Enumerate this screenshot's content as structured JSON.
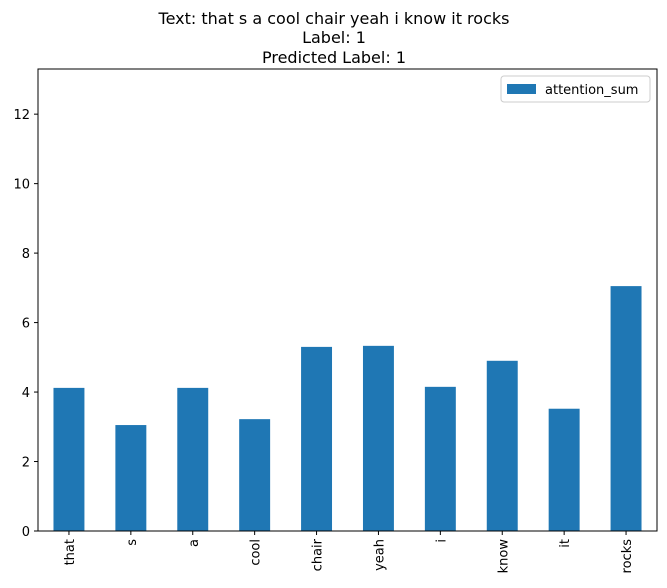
{
  "chart_data": {
    "type": "bar",
    "title_lines": [
      "Text: that s a cool chair yeah i know it rocks",
      "Label: 1",
      "Predicted Label: 1"
    ],
    "categories": [
      "that",
      "s",
      "a",
      "cool",
      "chair",
      "yeah",
      "i",
      "know",
      "it",
      "rocks"
    ],
    "series": [
      {
        "name": "attention_sum",
        "color": "#1f77b4",
        "values": [
          4.12,
          3.05,
          4.12,
          3.22,
          5.3,
          5.33,
          4.15,
          4.9,
          3.52,
          7.05
        ]
      }
    ],
    "yticks": [
      "0",
      "2",
      "4",
      "6",
      "8",
      "10",
      "12"
    ],
    "ylim": [
      0,
      13.3
    ],
    "xlabel": "",
    "ylabel": "",
    "grid": false,
    "legend_position": "top-right"
  }
}
